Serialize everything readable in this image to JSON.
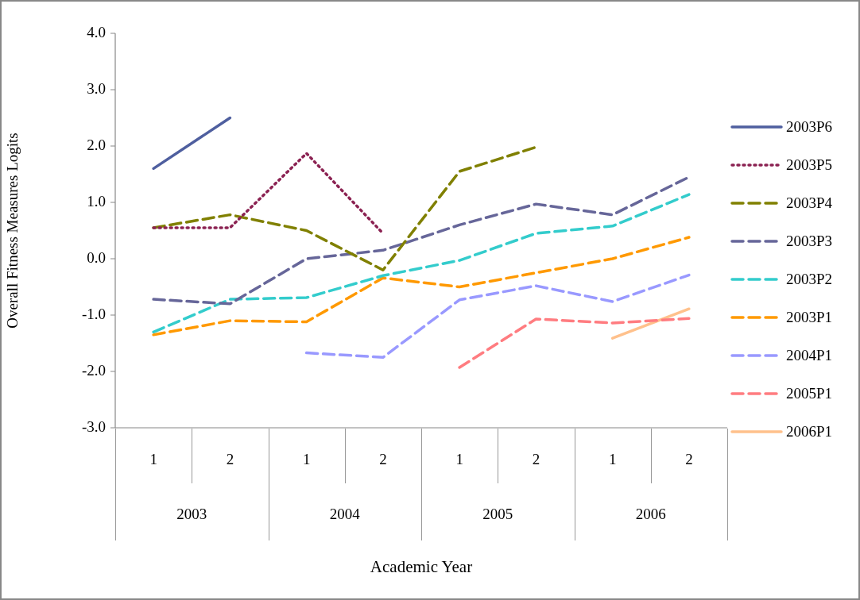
{
  "chart_data": {
    "type": "line",
    "ylabel": "Overall Fitness Measures Logits",
    "categories": [
      "1",
      "2",
      "1",
      "2",
      "1",
      "2",
      "1",
      "2"
    ],
    "annotations": [
      "2003",
      "2004",
      "2005",
      "2006",
      "Academic Year"
    ],
    "ylim": [
      -3,
      4
    ],
    "yticks": [
      {
        "value": 4,
        "label": "4.0"
      },
      {
        "value": 3,
        "label": "3.0"
      },
      {
        "value": 2,
        "label": "2.0"
      },
      {
        "value": 1,
        "label": "1.0"
      },
      {
        "value": 0,
        "label": "0.0"
      },
      {
        "value": -1,
        "label": "-1.0"
      },
      {
        "value": -2,
        "label": "-2.0"
      },
      {
        "value": -3,
        "label": "-3.0"
      }
    ],
    "grid": false,
    "legend": "right",
    "marker": "none",
    "series": [
      {
        "name": "2003P6",
        "color": "#4f5f9f",
        "line_style": "solid",
        "values": [
          1.6,
          2.5,
          null,
          null,
          null,
          null,
          null,
          null
        ]
      },
      {
        "name": "2003P5",
        "color": "#8b2252",
        "line_style": "dotted",
        "values": [
          0.55,
          0.55,
          1.87,
          0.45,
          null,
          null,
          null,
          null
        ]
      },
      {
        "name": "2003P4",
        "color": "#808000",
        "line_style": "dashed",
        "values": [
          0.55,
          0.78,
          0.5,
          -0.2,
          1.55,
          1.98,
          null,
          null
        ]
      },
      {
        "name": "2003P3",
        "color": "#666699",
        "line_style": "dashed",
        "values": [
          -0.72,
          -0.8,
          0.0,
          0.15,
          0.6,
          0.97,
          0.78,
          1.45
        ]
      },
      {
        "name": "2003P2",
        "color": "#33cccc",
        "line_style": "dashed",
        "values": [
          -1.3,
          -0.72,
          -0.69,
          -0.3,
          -0.03,
          0.45,
          0.58,
          1.14
        ]
      },
      {
        "name": "2003P1",
        "color": "#ff9900",
        "line_style": "dashed",
        "values": [
          -1.35,
          -1.1,
          -1.12,
          -0.34,
          -0.5,
          -0.25,
          0.0,
          0.38
        ]
      },
      {
        "name": "2004P1",
        "color": "#9999ff",
        "line_style": "dashed",
        "values": [
          null,
          null,
          -1.67,
          -1.75,
          -0.73,
          -0.48,
          -0.76,
          -0.29
        ]
      },
      {
        "name": "2005P1",
        "color": "#ff7c80",
        "line_style": "dashed",
        "values": [
          null,
          null,
          null,
          null,
          -1.93,
          -1.07,
          -1.14,
          -1.06
        ]
      },
      {
        "name": "2006P1",
        "color": "#ffc18c",
        "line_style": "solid",
        "values": [
          null,
          null,
          null,
          null,
          null,
          null,
          -1.41,
          -0.89
        ]
      }
    ]
  }
}
